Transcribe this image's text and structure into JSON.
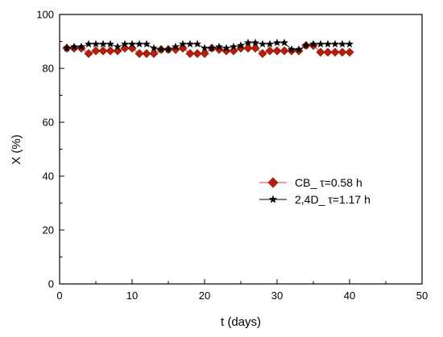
{
  "chart_data": {
    "type": "line",
    "title": "",
    "xlabel": "t (days)",
    "ylabel": "X (%)",
    "xlim": [
      0,
      50
    ],
    "ylim": [
      0,
      100
    ],
    "xticks": [
      0,
      10,
      20,
      30,
      40,
      50
    ],
    "yticks": [
      0,
      20,
      40,
      60,
      80,
      100
    ],
    "grid": false,
    "legend_position": "bottom-right",
    "series": [
      {
        "name": "CB_ τ=0.58 h",
        "marker": "diamond",
        "color": "#c0180e",
        "edge_color": "#7a2a10",
        "x": [
          1,
          2,
          3,
          4,
          5,
          6,
          7,
          8,
          9,
          10,
          11,
          12,
          13,
          14,
          15,
          16,
          17,
          18,
          19,
          20,
          21,
          22,
          23,
          24,
          25,
          26,
          27,
          28,
          29,
          30,
          31,
          32,
          33,
          34,
          35,
          36,
          37,
          38,
          39,
          40
        ],
        "y": [
          87.5,
          87.5,
          87.5,
          85.5,
          86.5,
          86.5,
          86.5,
          86.5,
          87.5,
          87.5,
          85.5,
          85.5,
          85.5,
          87.0,
          87.0,
          87.0,
          87.5,
          85.5,
          85.5,
          85.5,
          87.5,
          87.0,
          86.5,
          86.5,
          87.5,
          87.5,
          87.5,
          85.5,
          86.5,
          86.5,
          86.5,
          86.5,
          86.5,
          88.5,
          88.5,
          86.0,
          86.0,
          86.0,
          86.0,
          86.0
        ]
      },
      {
        "name": "2,4D_ τ=1.17 h",
        "marker": "star",
        "color": "#000000",
        "x": [
          1,
          2,
          3,
          4,
          5,
          6,
          7,
          8,
          9,
          10,
          11,
          12,
          13,
          14,
          15,
          16,
          17,
          18,
          19,
          20,
          21,
          22,
          23,
          24,
          25,
          26,
          27,
          28,
          29,
          30,
          31,
          32,
          33,
          34,
          35,
          36,
          37,
          38,
          39,
          40
        ],
        "y": [
          87.5,
          88.0,
          88.0,
          89.0,
          89.0,
          89.0,
          89.0,
          88.0,
          89.0,
          89.0,
          89.0,
          89.0,
          87.5,
          87.0,
          87.0,
          88.0,
          89.0,
          89.0,
          89.0,
          87.5,
          87.5,
          88.0,
          87.5,
          88.0,
          88.5,
          89.5,
          89.5,
          89.0,
          89.0,
          89.5,
          89.5,
          87.0,
          87.0,
          88.5,
          89.0,
          89.0,
          89.0,
          89.0,
          89.0,
          89.0
        ]
      }
    ]
  },
  "colors": {
    "axis": "#000000",
    "cb_fill": "#c0180e",
    "cb_edge": "#7a2a10",
    "cb_line": "#e03030",
    "d24_fill": "#000000"
  }
}
